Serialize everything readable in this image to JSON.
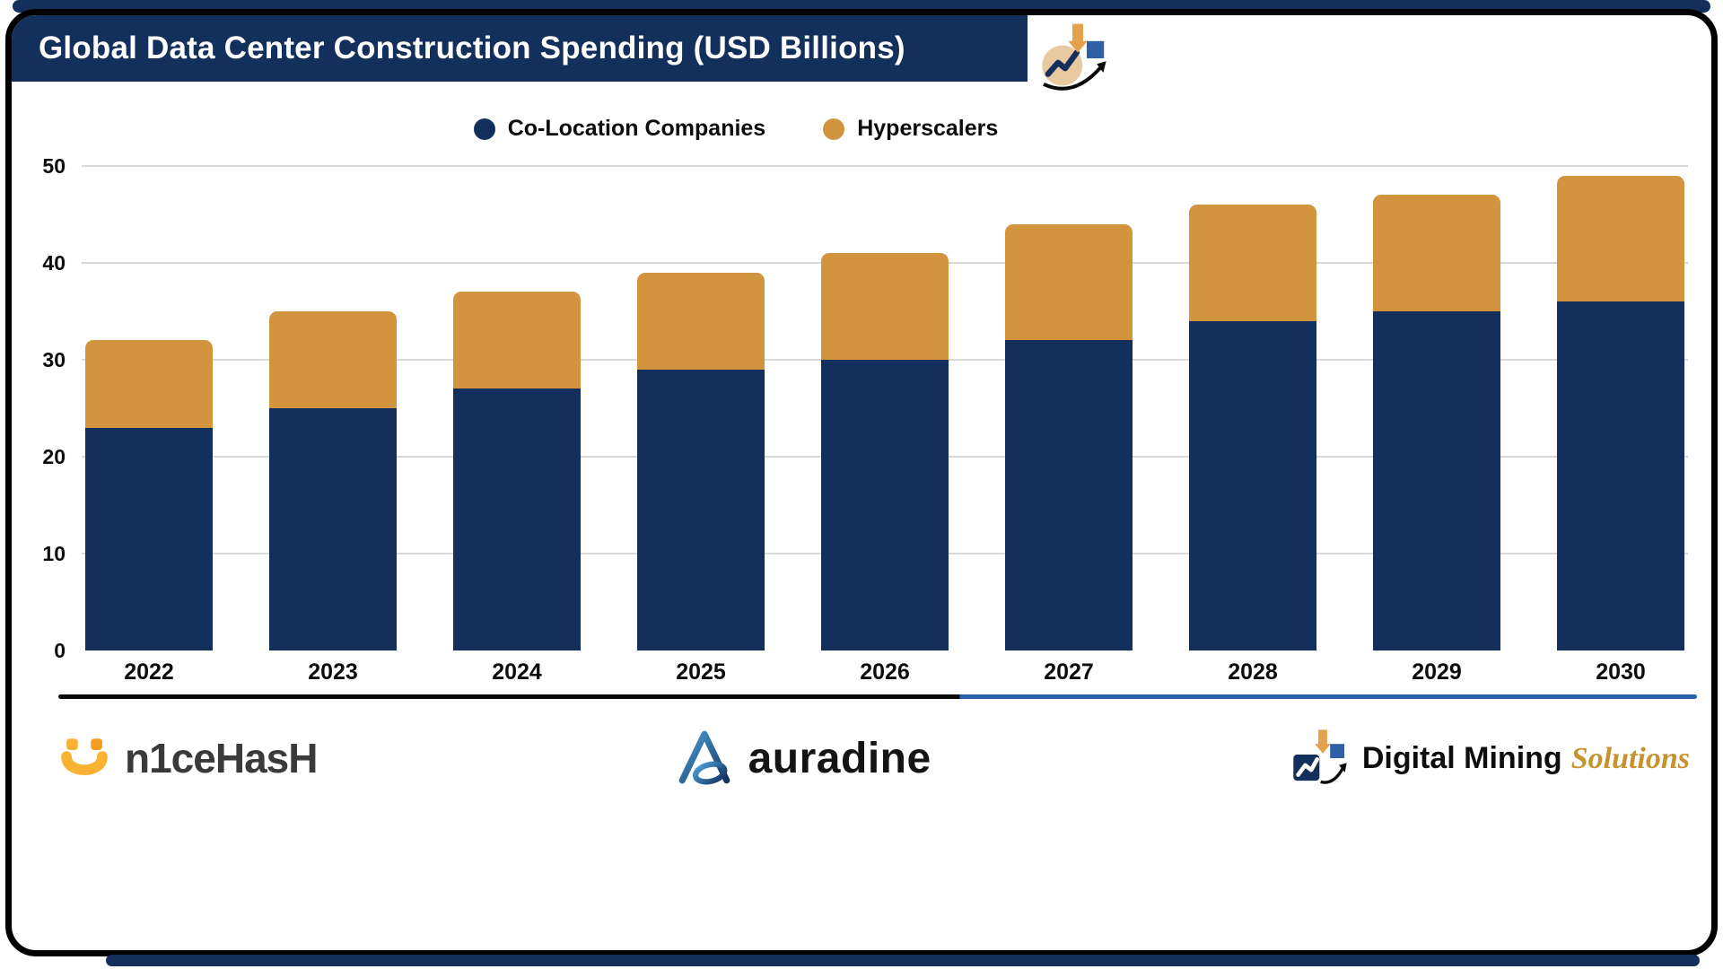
{
  "header": {
    "title": "Global Data Center Construction Spending (USD Billions)"
  },
  "chart_data": {
    "type": "bar",
    "stacked": true,
    "title": "Global Data Center Construction Spending (USD Billions)",
    "categories": [
      "2022",
      "2023",
      "2024",
      "2025",
      "2026",
      "2027",
      "2028",
      "2029",
      "2030"
    ],
    "series": [
      {
        "name": "Co-Location Companies",
        "color": "#13305c",
        "values": [
          23,
          25,
          27,
          29,
          30,
          32,
          34,
          35,
          36
        ]
      },
      {
        "name": "Hyperscalers",
        "color": "#d3943f",
        "values": [
          9,
          10,
          10,
          10,
          11,
          12,
          12,
          12,
          13
        ]
      }
    ],
    "totals": [
      32,
      35,
      37,
      39,
      41,
      44,
      46,
      47,
      49
    ],
    "ylim": [
      0,
      50
    ],
    "yticks": [
      0,
      10,
      20,
      30,
      40,
      50
    ],
    "grid": true,
    "legend_position": "top-center",
    "xlabel": "",
    "ylabel": ""
  },
  "footer": {
    "nicehash": {
      "name": "n1ceHasH"
    },
    "auradine": {
      "name": "auradine"
    },
    "digital_mining": {
      "part1": "Digital Mining",
      "part2": "Solutions"
    }
  },
  "colors": {
    "navy": "#13305c",
    "orange": "#d3943f",
    "gold": "#c8922f",
    "frame": "#000000",
    "separator_blue": "#2a5fad",
    "gridline": "#d9d9d9"
  }
}
